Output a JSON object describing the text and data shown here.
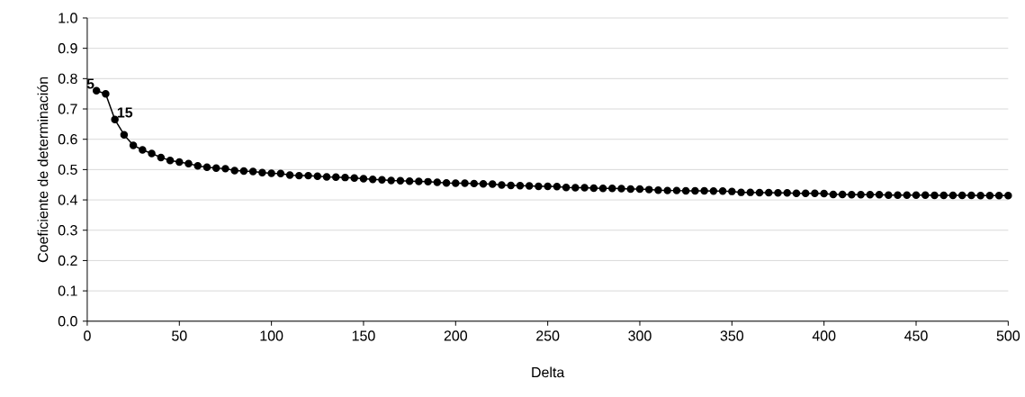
{
  "chart_data": {
    "type": "line",
    "xlabel": "Delta",
    "ylabel": "Coeficiente de determinación",
    "x": [
      5,
      10,
      15,
      20,
      25,
      30,
      35,
      40,
      45,
      50,
      55,
      60,
      65,
      70,
      75,
      80,
      85,
      90,
      95,
      100,
      105,
      110,
      115,
      120,
      125,
      130,
      135,
      140,
      145,
      150,
      155,
      160,
      165,
      170,
      175,
      180,
      185,
      190,
      195,
      200,
      205,
      210,
      215,
      220,
      225,
      230,
      235,
      240,
      245,
      250,
      255,
      260,
      265,
      270,
      275,
      280,
      285,
      290,
      295,
      300,
      305,
      310,
      315,
      320,
      325,
      330,
      335,
      340,
      345,
      350,
      355,
      360,
      365,
      370,
      375,
      380,
      385,
      390,
      395,
      400,
      405,
      410,
      415,
      420,
      425,
      430,
      435,
      440,
      445,
      450,
      455,
      460,
      465,
      470,
      475,
      480,
      485,
      490,
      495,
      500
    ],
    "series": [
      {
        "color": "#000000",
        "values": [
          0.76,
          0.75,
          0.665,
          0.615,
          0.58,
          0.565,
          0.553,
          0.54,
          0.53,
          0.525,
          0.52,
          0.512,
          0.508,
          0.505,
          0.503,
          0.497,
          0.495,
          0.494,
          0.49,
          0.488,
          0.487,
          0.482,
          0.48,
          0.48,
          0.478,
          0.476,
          0.475,
          0.474,
          0.472,
          0.47,
          0.468,
          0.466,
          0.464,
          0.463,
          0.462,
          0.461,
          0.46,
          0.458,
          0.456,
          0.455,
          0.455,
          0.454,
          0.453,
          0.452,
          0.449,
          0.448,
          0.447,
          0.446,
          0.445,
          0.445,
          0.444,
          0.441,
          0.44,
          0.44,
          0.439,
          0.438,
          0.438,
          0.437,
          0.436,
          0.436,
          0.434,
          0.432,
          0.431,
          0.431,
          0.43,
          0.43,
          0.43,
          0.429,
          0.429,
          0.428,
          0.425,
          0.425,
          0.424,
          0.424,
          0.423,
          0.423,
          0.422,
          0.422,
          0.422,
          0.421,
          0.418,
          0.418,
          0.417,
          0.417,
          0.417,
          0.417,
          0.416,
          0.416,
          0.416,
          0.416,
          0.416,
          0.415,
          0.415,
          0.415,
          0.415,
          0.415,
          0.414,
          0.414,
          0.414,
          0.414
        ]
      }
    ],
    "xlim": [
      0,
      500
    ],
    "xticks": [
      0,
      50,
      100,
      150,
      200,
      250,
      300,
      350,
      400,
      450,
      500
    ],
    "ylim": [
      0,
      1
    ],
    "yticks": [
      {
        "value": 0,
        "label": "0.0"
      },
      0.1,
      0.2,
      0.3,
      0.4,
      0.5,
      0.6,
      0.7,
      0.8,
      0.9,
      {
        "value": 1,
        "label": "1.0"
      }
    ],
    "annotations": [
      {
        "text": "5",
        "x": 5,
        "y": 0.76
      },
      {
        "text": "15",
        "x": 15,
        "y": 0.665
      }
    ],
    "grid": "y",
    "marker": "circle",
    "line_style": "solid"
  }
}
